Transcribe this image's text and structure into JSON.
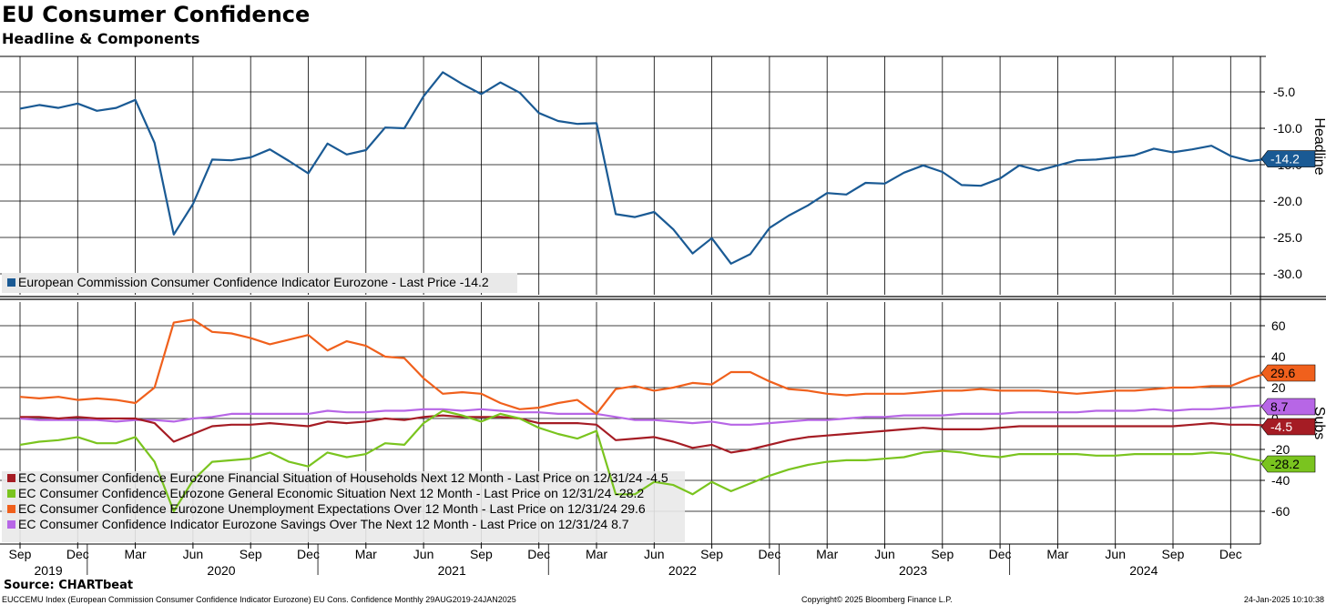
{
  "header": {
    "title": "EU Consumer Confidence",
    "subtitle": "Headline & Components"
  },
  "footer": {
    "source": "Source: CHARTbeat",
    "ticker": "EUCCEMU Index (European Commission Consumer Confidence Indicator Eurozone) EU Cons. Confidence  Monthly 29AUG2019-24JAN2025",
    "copyright": "Copyright© 2025 Bloomberg Finance L.P.",
    "timestamp": "24-Jan-2025 10:10:38"
  },
  "chart_data": [
    {
      "type": "line",
      "panel": "top",
      "ylabel": "Headline",
      "ylim": [
        -33,
        0
      ],
      "yticks": [
        -5,
        -10,
        -15,
        -20,
        -25,
        -30
      ],
      "ytick_labels": [
        "-5.0",
        "-10.0",
        "-15.0",
        "-20.0",
        "-25.0",
        "-30.0"
      ],
      "legend_position": "bottom-left",
      "series": [
        {
          "name": "European Commission Consumer Confidence Indicator Eurozone - Last Price -14.2",
          "color": "#1a5a94",
          "last_label": "-14.2",
          "values": [
            -7.3,
            -6.8,
            -7.2,
            -6.6,
            -7.6,
            -7.2,
            -6.1,
            -12.0,
            -24.6,
            -20.4,
            -14.3,
            -14.4,
            -14.0,
            -12.9,
            -14.5,
            -16.2,
            -12.1,
            -13.6,
            -13.0,
            -9.9,
            -10.0,
            -5.6,
            -2.3,
            -3.9,
            -5.3,
            -3.7,
            -5.1,
            -7.9,
            -9.0,
            -9.4,
            -9.3,
            -21.8,
            -22.2,
            -21.5,
            -23.9,
            -27.2,
            -25.1,
            -28.6,
            -27.3,
            -23.7,
            -22.0,
            -20.6,
            -18.9,
            -19.1,
            -17.5,
            -17.6,
            -16.1,
            -15.1,
            -16.0,
            -17.8,
            -17.9,
            -16.9,
            -15.1,
            -15.8,
            -15.1,
            -14.4,
            -14.3,
            -14.0,
            -13.7,
            -12.8,
            -13.3,
            -12.9,
            -12.4,
            -13.8,
            -14.5,
            -14.2
          ]
        }
      ]
    },
    {
      "type": "line",
      "panel": "bottom",
      "ylabel": "Subs",
      "ylim": [
        -80,
        80
      ],
      "yticks": [
        60,
        40,
        20,
        0,
        -20,
        -40,
        -60
      ],
      "ytick_labels": [
        "60",
        "40",
        "20",
        "0",
        "-20",
        "-40",
        "-60"
      ],
      "legend_position": "bottom-left",
      "series": [
        {
          "name": "EC Consumer Confidence Eurozone Financial Situation of Households Next 12 Month - Last Price on 12/31/24  -4.5",
          "color": "#a51c24",
          "last_label": "-4.5",
          "values": [
            1,
            1,
            0,
            1,
            0,
            0,
            0,
            -3,
            -15,
            -10,
            -5,
            -4,
            -4,
            -3,
            -4,
            -5,
            -2,
            -3,
            -2,
            0,
            -1,
            1,
            2,
            1,
            1,
            1,
            0,
            -3,
            -3,
            -3,
            -4,
            -14,
            -13,
            -12,
            -15,
            -19,
            -17,
            -22,
            -20,
            -17,
            -14,
            -12,
            -11,
            -10,
            -9,
            -8,
            -7,
            -6,
            -7,
            -7,
            -7,
            -6,
            -5,
            -5,
            -5,
            -5,
            -5,
            -5,
            -5,
            -5,
            -5,
            -4,
            -3,
            -4,
            -4,
            -4.5
          ]
        },
        {
          "name": "EC Consumer Confidence Eurozone General Economic Situation Next 12 Month - Last Price on 12/31/24  -28.2",
          "color": "#7ac41f",
          "last_label": "-28.2",
          "values": [
            -17,
            -15,
            -14,
            -12,
            -16,
            -16,
            -12,
            -28,
            -60,
            -40,
            -28,
            -27,
            -26,
            -22,
            -28,
            -31,
            -22,
            -25,
            -23,
            -16,
            -17,
            -3,
            5,
            2,
            -2,
            3,
            0,
            -6,
            -10,
            -13,
            -8,
            -49,
            -49,
            -41,
            -43,
            -49,
            -41,
            -47,
            -42,
            -37,
            -33,
            -30,
            -28,
            -27,
            -27,
            -26,
            -25,
            -22,
            -21,
            -22,
            -24,
            -25,
            -23,
            -23,
            -23,
            -23,
            -24,
            -24,
            -23,
            -23,
            -23,
            -23,
            -22,
            -23,
            -26,
            -28.2
          ]
        },
        {
          "name": "EC Consumer Confidence Eurozone Unemployment Expectations Over 12 Month - Last Price on 12/31/24 29.6",
          "color": "#f0601c",
          "last_label": "29.6",
          "values": [
            14,
            13,
            14,
            12,
            13,
            12,
            10,
            20,
            62,
            64,
            56,
            55,
            52,
            48,
            51,
            54,
            44,
            50,
            47,
            40,
            39,
            26,
            16,
            17,
            16,
            10,
            6,
            7,
            10,
            12,
            3,
            19,
            21,
            18,
            20,
            23,
            22,
            30,
            30,
            24,
            19,
            18,
            16,
            15,
            16,
            16,
            16,
            17,
            18,
            18,
            19,
            18,
            18,
            18,
            17,
            16,
            17,
            18,
            18,
            19,
            20,
            20,
            21,
            21,
            26,
            29.6
          ]
        },
        {
          "name": "EC Consumer Confidence Indicator Eurozone Savings Over The Next 12 Month - Last Price on 12/31/24  8.7",
          "color": "#b766e6",
          "last_label": "8.7",
          "values": [
            0,
            -1,
            -1,
            -1,
            -1,
            -2,
            -1,
            -1,
            -2,
            0,
            1,
            3,
            3,
            3,
            3,
            3,
            5,
            4,
            4,
            5,
            5,
            6,
            6,
            5,
            6,
            5,
            4,
            4,
            3,
            3,
            3,
            1,
            -1,
            -1,
            -2,
            -3,
            -2,
            -4,
            -4,
            -3,
            -2,
            -1,
            -1,
            0,
            1,
            1,
            2,
            2,
            2,
            3,
            3,
            3,
            4,
            4,
            4,
            4,
            5,
            5,
            5,
            6,
            5,
            6,
            6,
            7,
            8,
            8.7
          ]
        }
      ]
    },
    {
      "type": "axis",
      "panel": "x-axis",
      "start": "Sep 2019",
      "end": "Jan 2025",
      "month_ticks": [
        {
          "month": 0,
          "label": "Sep"
        },
        {
          "month": 3,
          "label": "Dec"
        },
        {
          "month": 6,
          "label": "Mar"
        },
        {
          "month": 9,
          "label": "Jun"
        },
        {
          "month": 12,
          "label": "Sep"
        },
        {
          "month": 15,
          "label": "Dec"
        },
        {
          "month": 18,
          "label": "Mar"
        },
        {
          "month": 21,
          "label": "Jun"
        },
        {
          "month": 24,
          "label": "Sep"
        },
        {
          "month": 27,
          "label": "Dec"
        },
        {
          "month": 30,
          "label": "Mar"
        },
        {
          "month": 33,
          "label": "Jun"
        },
        {
          "month": 36,
          "label": "Sep"
        },
        {
          "month": 39,
          "label": "Dec"
        },
        {
          "month": 42,
          "label": "Mar"
        },
        {
          "month": 45,
          "label": "Jun"
        },
        {
          "month": 48,
          "label": "Sep"
        },
        {
          "month": 51,
          "label": "Dec"
        },
        {
          "month": 54,
          "label": "Mar"
        },
        {
          "month": 57,
          "label": "Jun"
        },
        {
          "month": 60,
          "label": "Sep"
        },
        {
          "month": 63,
          "label": "Dec"
        }
      ],
      "year_labels": [
        {
          "month": 1,
          "label": "2019"
        },
        {
          "month": 10,
          "label": "2020"
        },
        {
          "month": 22,
          "label": "2021"
        },
        {
          "month": 34,
          "label": "2022"
        },
        {
          "month": 46,
          "label": "2023"
        },
        {
          "month": 58,
          "label": "2024"
        }
      ]
    }
  ]
}
